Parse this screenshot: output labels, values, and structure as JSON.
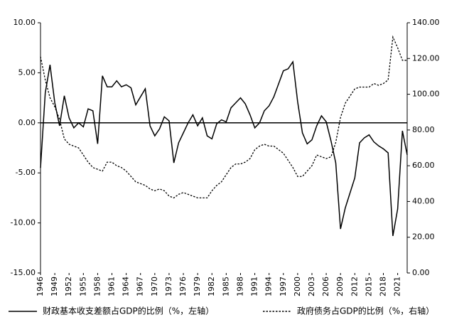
{
  "chart_data": {
    "type": "line",
    "x": [
      1946,
      1947,
      1948,
      1949,
      1950,
      1951,
      1952,
      1953,
      1954,
      1955,
      1956,
      1957,
      1958,
      1959,
      1960,
      1961,
      1962,
      1963,
      1964,
      1965,
      1966,
      1967,
      1968,
      1969,
      1970,
      1971,
      1972,
      1973,
      1974,
      1975,
      1976,
      1977,
      1978,
      1979,
      1980,
      1981,
      1982,
      1983,
      1984,
      1985,
      1986,
      1987,
      1988,
      1989,
      1990,
      1991,
      1992,
      1993,
      1994,
      1995,
      1996,
      1997,
      1998,
      1999,
      2000,
      2001,
      2002,
      2003,
      2004,
      2005,
      2006,
      2007,
      2008,
      2009,
      2010,
      2011,
      2012,
      2013,
      2014,
      2015,
      2016,
      2017,
      2018,
      2019,
      2020,
      2021,
      2022,
      2023
    ],
    "xlim": [
      1946,
      2023
    ],
    "xticks": [
      1946,
      1949,
      1952,
      1955,
      1958,
      1961,
      1964,
      1967,
      1970,
      1973,
      1976,
      1979,
      1982,
      1985,
      1988,
      1991,
      1994,
      1997,
      2000,
      2003,
      2006,
      2009,
      2012,
      2015,
      2018,
      2021
    ],
    "ylim": [
      -15,
      10
    ],
    "yticks": [
      {
        "value": -15,
        "label": "-15.00"
      },
      {
        "value": -10,
        "label": "-10.00"
      },
      {
        "value": -5,
        "label": "-5.00"
      },
      {
        "value": 0,
        "label": "0.00"
      },
      {
        "value": 5,
        "label": "5.00"
      },
      {
        "value": 10,
        "label": "10.00"
      }
    ],
    "y2lim": [
      0,
      140
    ],
    "y2ticks": [
      {
        "value": 0,
        "label": "0.00"
      },
      {
        "value": 20,
        "label": "20.00"
      },
      {
        "value": 40,
        "label": "40.00"
      },
      {
        "value": 60,
        "label": "60.00"
      },
      {
        "value": 80,
        "label": "80.00"
      },
      {
        "value": 100,
        "label": "100.00"
      },
      {
        "value": 120,
        "label": "120.00"
      },
      {
        "value": 140,
        "label": "140.00"
      }
    ],
    "series": [
      {
        "name": "财政基本收支差额占GDP的比例（%，左轴）",
        "color": "#000000",
        "style": "solid",
        "axis": "y",
        "values": [
          -4.5,
          3.0,
          5.8,
          2.0,
          -0.3,
          2.7,
          0.5,
          -0.5,
          0.0,
          -0.4,
          1.4,
          1.2,
          -2.1,
          4.7,
          3.6,
          3.6,
          4.2,
          3.6,
          3.8,
          3.5,
          1.8,
          2.6,
          3.4,
          -0.3,
          -1.3,
          -0.6,
          0.6,
          0.2,
          -4.0,
          -2.0,
          -1.0,
          0.0,
          0.8,
          -0.3,
          0.5,
          -1.3,
          -1.6,
          -0.1,
          0.3,
          0.1,
          1.5,
          2.0,
          2.5,
          1.9,
          0.8,
          -0.5,
          0.0,
          1.2,
          1.7,
          2.6,
          3.9,
          5.2,
          5.4,
          6.1,
          2.1,
          -1.0,
          -2.1,
          -1.7,
          -0.3,
          0.7,
          0.1,
          -1.8,
          -4.0,
          -10.6,
          -8.5,
          -7.0,
          -5.5,
          -2.0,
          -1.5,
          -1.2,
          -1.9,
          -2.3,
          -2.6,
          -3.0,
          -11.3,
          -8.6,
          -0.8,
          -3.2
        ]
      },
      {
        "name": "政府债务占GDP的比例（%，右轴）",
        "color": "#000000",
        "style": "dotted",
        "axis": "y2",
        "values": [
          121,
          108,
          98,
          93,
          86,
          75,
          72,
          71,
          70,
          66,
          62,
          59,
          58,
          57,
          62,
          62,
          60,
          59,
          57,
          54,
          51,
          50,
          49,
          47,
          46,
          47,
          46,
          43,
          42,
          44,
          45,
          44,
          43,
          42,
          42,
          42,
          46,
          49,
          51,
          55,
          59,
          61,
          61,
          62,
          64,
          69,
          71,
          72,
          71,
          71,
          69,
          67,
          63,
          59,
          54,
          54,
          57,
          60,
          66,
          65,
          64,
          65,
          73,
          87,
          95,
          99,
          103,
          104,
          104,
          104,
          106,
          105,
          106,
          108,
          132,
          126,
          119,
          119
        ]
      }
    ]
  }
}
